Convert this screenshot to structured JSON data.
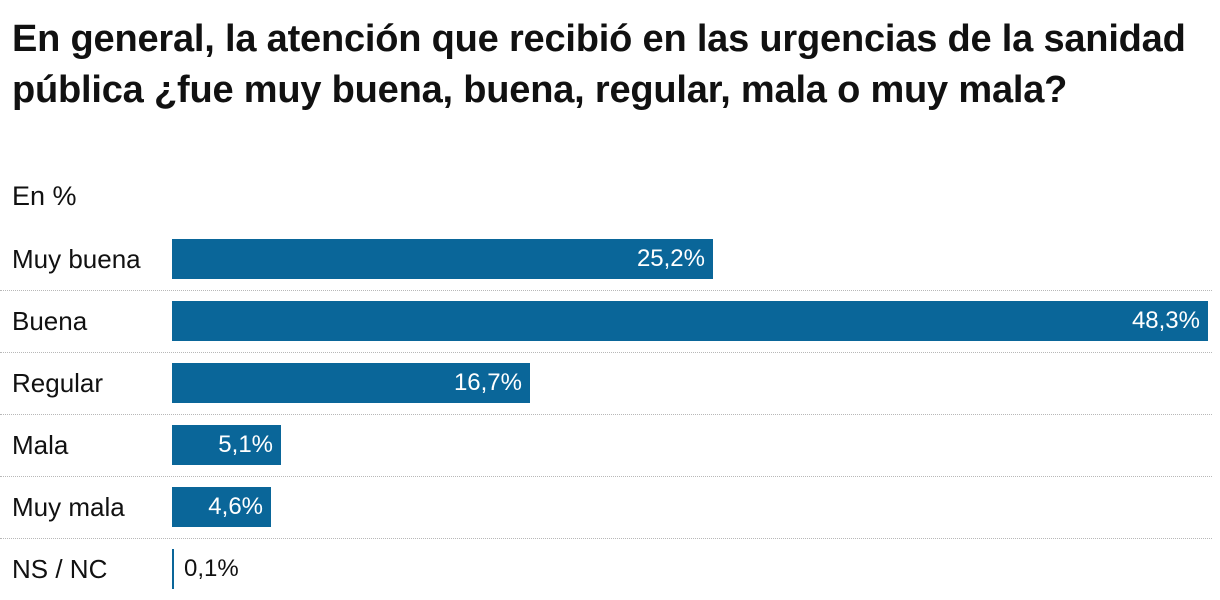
{
  "chart_data": {
    "type": "bar",
    "orientation": "horizontal",
    "title": "En general, la atención que recibió en las urgencias de la sanidad pública ¿fue muy buena, buena, regular, mala o muy mala?",
    "subtitle": "En %",
    "categories": [
      "Muy buena",
      "Buena",
      "Regular",
      "Mala",
      "Muy mala",
      "NS / NC"
    ],
    "values": [
      25.2,
      48.3,
      16.7,
      5.1,
      4.6,
      0.1
    ],
    "value_labels": [
      "25,2%",
      "48,3%",
      "16,7%",
      "5,1%",
      "4,6%",
      "0,1%"
    ],
    "xlim": [
      0,
      48.3
    ],
    "xlabel": "",
    "ylabel": "",
    "bar_color": "#0a6699",
    "grid": false,
    "legend": "none"
  }
}
